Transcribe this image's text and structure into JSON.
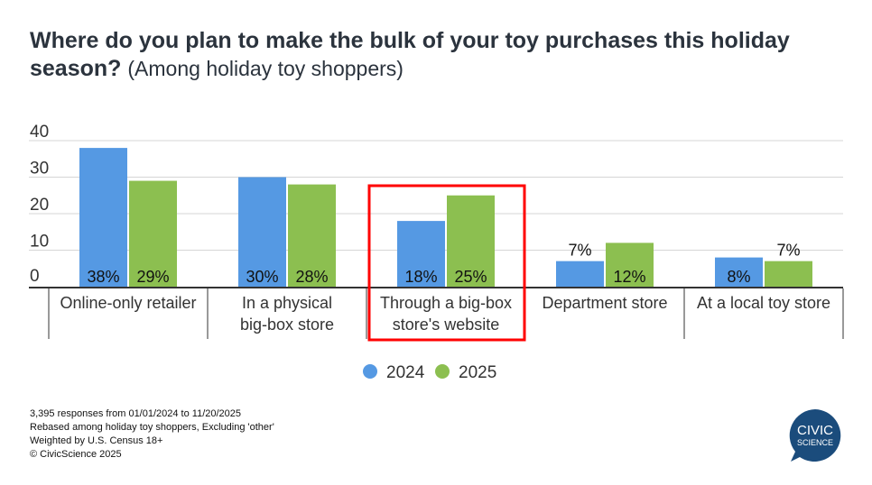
{
  "title": {
    "main": "Where do you plan to make the bulk of your toy purchases this holiday season?",
    "sub": "(Among holiday toy shoppers)"
  },
  "chart_data": {
    "type": "bar",
    "categories": [
      [
        "Online-only retailer"
      ],
      [
        "In a physical",
        "big-box store"
      ],
      [
        "Through a big-box",
        "store's website"
      ],
      [
        "Department store"
      ],
      [
        "At a local toy store"
      ]
    ],
    "series": [
      {
        "name": "2024",
        "color": "#5599e3",
        "values": [
          38,
          30,
          18,
          7,
          8
        ],
        "labels": [
          "38%",
          "30%",
          "18%",
          "7%",
          "8%"
        ]
      },
      {
        "name": "2025",
        "color": "#8cbf50",
        "values": [
          29,
          28,
          25,
          12,
          7
        ],
        "labels": [
          "29%",
          "28%",
          "25%",
          "12%",
          "7%"
        ]
      }
    ],
    "yticks": [
      "0",
      "10",
      "20",
      "30",
      "40"
    ],
    "ylim": [
      0,
      40
    ],
    "grid": true,
    "legend": "bottom-center",
    "highlighted_category": 2
  },
  "notes": [
    "3,395 responses from 01/01/2024 to 11/20/2025",
    "Rebased among holiday toy shoppers, Excluding 'other'",
    "Weighted by U.S. Census 18+",
    "© CivicScience 2025"
  ],
  "logo": {
    "line1": "CIVIC",
    "line2": "SCIENCE",
    "color": "#1b4c7c"
  }
}
